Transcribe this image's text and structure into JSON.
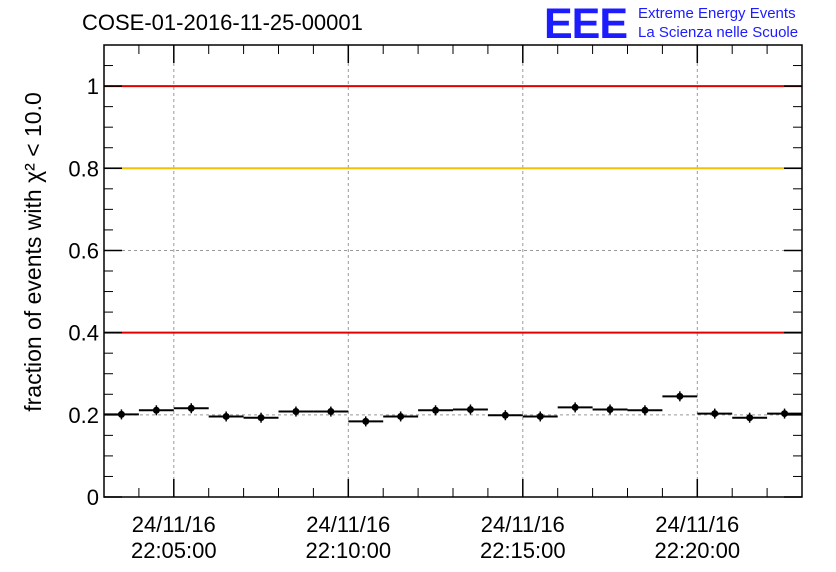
{
  "header": {
    "title": "COSE-01-2016-11-25-00001",
    "logo_mark": "EEE",
    "logo_line1": "Extreme Energy Events",
    "logo_line2": "La Scienza nelle Scuole"
  },
  "chart_data": {
    "type": "scatter",
    "title": "COSE-01-2016-11-25-00001",
    "ylabel": "fraction of events with χ² < 10.0",
    "xlabel": "",
    "ylim": [
      0,
      1.1
    ],
    "x_range": [
      "24/11/16 22:03:00",
      "24/11/16 22:23:00"
    ],
    "x_ticks": [
      {
        "date": "24/11/16",
        "time": "22:05:00"
      },
      {
        "date": "24/11/16",
        "time": "22:10:00"
      },
      {
        "date": "24/11/16",
        "time": "22:15:00"
      },
      {
        "date": "24/11/16",
        "time": "22:20:00"
      }
    ],
    "y_ticks": [
      "0",
      "0.2",
      "0.4",
      "0.6",
      "0.8",
      "1"
    ],
    "grid": true,
    "reference_lines": [
      {
        "y": 1.0,
        "color": "#e00000"
      },
      {
        "y": 0.8,
        "color": "#f5c000"
      },
      {
        "y": 0.4,
        "color": "#e00000"
      }
    ],
    "series": [
      {
        "marker_color": "#000000",
        "x_half_width_minutes": 0.5,
        "points": [
          {
            "x": "22:03:30",
            "y": 0.201
          },
          {
            "x": "22:04:30",
            "y": 0.211
          },
          {
            "x": "22:05:30",
            "y": 0.216
          },
          {
            "x": "22:06:30",
            "y": 0.196
          },
          {
            "x": "22:07:30",
            "y": 0.193
          },
          {
            "x": "22:08:30",
            "y": 0.208
          },
          {
            "x": "22:09:30",
            "y": 0.208
          },
          {
            "x": "22:10:30",
            "y": 0.184
          },
          {
            "x": "22:11:30",
            "y": 0.196
          },
          {
            "x": "22:12:30",
            "y": 0.211
          },
          {
            "x": "22:13:30",
            "y": 0.213
          },
          {
            "x": "22:14:30",
            "y": 0.199
          },
          {
            "x": "22:15:30",
            "y": 0.196
          },
          {
            "x": "22:16:30",
            "y": 0.218
          },
          {
            "x": "22:17:30",
            "y": 0.213
          },
          {
            "x": "22:18:30",
            "y": 0.211
          },
          {
            "x": "22:19:30",
            "y": 0.245
          },
          {
            "x": "22:20:30",
            "y": 0.203
          },
          {
            "x": "22:21:30",
            "y": 0.193
          },
          {
            "x": "22:22:30",
            "y": 0.203
          }
        ]
      }
    ]
  }
}
